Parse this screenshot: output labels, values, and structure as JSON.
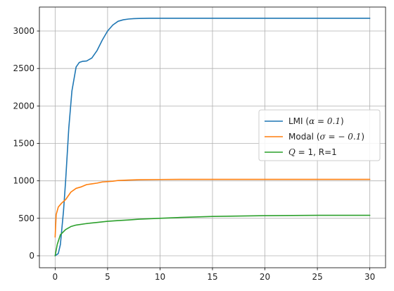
{
  "chart_data": {
    "type": "line",
    "title": "",
    "xlabel": "",
    "ylabel": "",
    "xlim": [
      -1.5,
      31.5
    ],
    "ylim": [
      -160,
      3320
    ],
    "grid": true,
    "legend_position": "center-right",
    "x_ticks": [
      0,
      5,
      10,
      15,
      20,
      25,
      30
    ],
    "y_ticks": [
      0,
      500,
      1000,
      1500,
      2000,
      2500,
      3000
    ],
    "x_tick_labels": [
      "0",
      "5",
      "10",
      "15",
      "20",
      "25",
      "30"
    ],
    "y_tick_labels": [
      "0",
      "500",
      "1000",
      "1500",
      "2000",
      "2500",
      "3000"
    ],
    "series": [
      {
        "name": "LMI (α = 0.1)",
        "legend_parts": [
          {
            "text": "LMI (",
            "math": false
          },
          {
            "text": "α = 0.1",
            "math": true
          },
          {
            "text": ")",
            "math": false
          }
        ],
        "color": "#1f77b4",
        "x": [
          0,
          0.3,
          0.5,
          0.8,
          1.0,
          1.3,
          1.6,
          2.0,
          2.3,
          2.6,
          3.0,
          3.5,
          4.0,
          4.5,
          5.0,
          5.5,
          6.0,
          6.5,
          7.0,
          7.5,
          8.0,
          9.0,
          10.0,
          12.0,
          15.0,
          20.0,
          25.0,
          30.0
        ],
        "y": [
          0,
          30,
          150,
          600,
          1000,
          1700,
          2200,
          2520,
          2580,
          2595,
          2600,
          2640,
          2740,
          2880,
          3000,
          3080,
          3130,
          3150,
          3160,
          3165,
          3168,
          3170,
          3170,
          3170,
          3170,
          3170,
          3170,
          3170
        ]
      },
      {
        "name": "Modal (σ = −0.1)",
        "legend_parts": [
          {
            "text": "Modal (",
            "math": false
          },
          {
            "text": "σ = − 0.1",
            "math": true
          },
          {
            "text": ")",
            "math": false
          }
        ],
        "color": "#ff7f0e",
        "x": [
          0,
          0.1,
          0.3,
          0.6,
          1.0,
          1.5,
          2.0,
          2.5,
          3.0,
          3.5,
          4.0,
          4.5,
          5.0,
          5.5,
          6.0,
          7.0,
          8.0,
          10.0,
          12.0,
          15.0,
          20.0,
          25.0,
          30.0
        ],
        "y": [
          250,
          550,
          650,
          700,
          750,
          850,
          900,
          920,
          950,
          960,
          970,
          985,
          990,
          995,
          1005,
          1010,
          1015,
          1018,
          1020,
          1020,
          1020,
          1020,
          1020
        ]
      },
      {
        "name": "Q = 1, R=1",
        "legend_parts": [
          {
            "text": "Q",
            "math": true
          },
          {
            "text": " = 1, R=1",
            "math": false
          }
        ],
        "color": "#2ca02c",
        "x": [
          0,
          0.2,
          0.5,
          1.0,
          1.5,
          2.0,
          3.0,
          4.0,
          5.0,
          6.0,
          7.0,
          8.0,
          10.0,
          12.0,
          15.0,
          20.0,
          25.0,
          30.0
        ],
        "y": [
          0,
          150,
          280,
          350,
          390,
          410,
          430,
          445,
          460,
          470,
          478,
          488,
          500,
          512,
          525,
          535,
          540,
          540
        ]
      }
    ]
  }
}
